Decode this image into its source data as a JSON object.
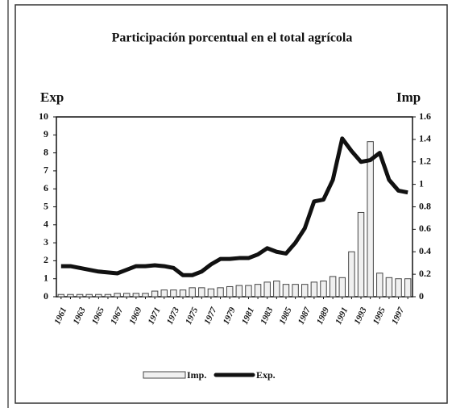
{
  "chart_data": {
    "type": "combo",
    "title": "Participación porcentual en el total agrícola",
    "y_label": "Exp",
    "y2_label": "Imp",
    "categories": [
      "1961",
      null,
      "1963",
      null,
      "1965",
      null,
      "1967",
      null,
      "1969",
      null,
      "1971",
      null,
      "1973",
      null,
      "1975",
      null,
      "1977",
      null,
      "1979",
      null,
      "1981",
      null,
      "1983",
      null,
      "1985",
      null,
      "1987",
      null,
      "1989",
      null,
      "1991",
      null,
      "1993",
      null,
      "1995",
      null,
      "1997",
      null
    ],
    "series": [
      {
        "name": "Imp.",
        "type": "bar",
        "axis": "y2",
        "color": "#f0f0f0",
        "values": [
          0.02,
          0.02,
          0.02,
          0.02,
          0.02,
          0.02,
          0.03,
          0.03,
          0.03,
          0.03,
          0.05,
          0.06,
          0.06,
          0.06,
          0.08,
          0.08,
          0.07,
          0.08,
          0.09,
          0.1,
          0.1,
          0.11,
          0.13,
          0.14,
          0.11,
          0.11,
          0.11,
          0.13,
          0.14,
          0.18,
          0.17,
          0.4,
          0.75,
          1.38,
          0.21,
          0.17,
          0.16,
          0.16
        ]
      },
      {
        "name": "Exp.",
        "type": "line",
        "color": "#111111",
        "values": [
          1.7,
          1.7,
          1.6,
          1.5,
          1.4,
          1.35,
          1.3,
          1.5,
          1.7,
          1.7,
          1.75,
          1.7,
          1.6,
          1.2,
          1.2,
          1.4,
          1.8,
          2.1,
          2.1,
          2.15,
          2.15,
          2.35,
          2.7,
          2.5,
          2.4,
          3.0,
          3.8,
          5.3,
          5.4,
          6.5,
          8.8,
          8.1,
          7.5,
          7.6,
          8.0,
          6.5,
          5.9,
          5.8
        ]
      }
    ],
    "ylim": [
      0,
      10
    ],
    "yticks": [
      0,
      1,
      2,
      3,
      4,
      5,
      6,
      7,
      8,
      9,
      10
    ],
    "y2lim": [
      0,
      1.6
    ],
    "y2ticks": [
      0,
      0.2,
      0.4,
      0.6,
      0.8,
      1,
      1.2,
      1.4,
      1.6
    ]
  }
}
